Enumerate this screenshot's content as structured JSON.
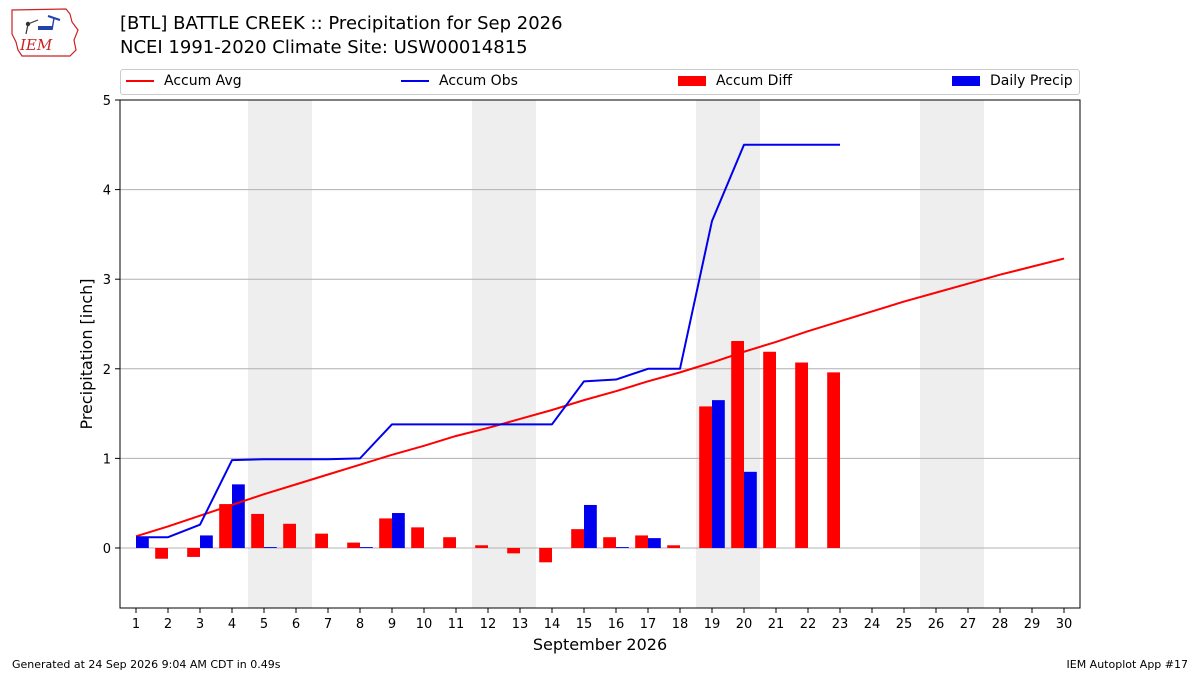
{
  "header": {
    "logo_text": "IEM",
    "title_line1": "[BTL] BATTLE CREEK :: Precipitation for Sep 2026",
    "title_line2": "NCEI 1991-2020 Climate Site: USW00014815"
  },
  "footer": {
    "left": "Generated at 24 Sep 2026 9:04 AM CDT in 0.49s",
    "right": "IEM Autoplot App #17"
  },
  "colors": {
    "avg": "#ff0000",
    "obs": "#0000ee",
    "diff": "#ff0000",
    "daily": "#0000ee",
    "weekend_shade": "#eeeeee",
    "grid": "#b0b0b0"
  },
  "chart_data": {
    "type": "bar",
    "xlabel": "September 2026",
    "ylabel": "Precipitation [inch]",
    "ylim": [
      -0.67,
      5
    ],
    "yticks": [
      0,
      1,
      2,
      3,
      4,
      5
    ],
    "xlim": [
      0.5,
      30.5
    ],
    "x": [
      1,
      2,
      3,
      4,
      5,
      6,
      7,
      8,
      9,
      10,
      11,
      12,
      13,
      14,
      15,
      16,
      17,
      18,
      19,
      20,
      21,
      22,
      23,
      24,
      25,
      26,
      27,
      28,
      29,
      30
    ],
    "grid": "horizontal",
    "legend_placement": "top",
    "weekend_shading": [
      [
        4.5,
        6.5
      ],
      [
        11.5,
        13.5
      ],
      [
        18.5,
        20.5
      ],
      [
        25.5,
        27.5
      ]
    ],
    "series": [
      {
        "name": "Accum Avg",
        "kind": "line",
        "values": [
          0.13,
          0.24,
          0.36,
          0.48,
          0.6,
          0.71,
          0.82,
          0.93,
          1.04,
          1.14,
          1.25,
          1.34,
          1.44,
          1.54,
          1.65,
          1.75,
          1.86,
          1.96,
          2.07,
          2.19,
          2.3,
          2.42,
          2.53,
          2.64,
          2.75,
          2.85,
          2.95,
          3.05,
          3.14,
          3.23
        ]
      },
      {
        "name": "Accum Obs",
        "kind": "line",
        "values": [
          0.12,
          0.12,
          0.26,
          0.98,
          0.99,
          0.99,
          0.99,
          1.0,
          1.38,
          1.38,
          1.38,
          1.38,
          1.38,
          1.38,
          1.86,
          1.88,
          2.0,
          2.0,
          3.65,
          4.5,
          4.5,
          4.5,
          4.5,
          null,
          null,
          null,
          null,
          null,
          null,
          null
        ]
      },
      {
        "name": "Accum Diff",
        "kind": "bar",
        "values": [
          0.0,
          -0.12,
          -0.1,
          0.49,
          0.38,
          0.27,
          0.16,
          0.06,
          0.33,
          0.23,
          0.12,
          0.03,
          -0.06,
          -0.16,
          0.21,
          0.12,
          0.14,
          0.03,
          1.58,
          2.31,
          2.19,
          2.07,
          1.96,
          null,
          null,
          null,
          null,
          null,
          null,
          null
        ]
      },
      {
        "name": "Daily Precip",
        "kind": "bar",
        "values": [
          0.12,
          0.0,
          0.14,
          0.71,
          0.01,
          0.0,
          0.0,
          0.01,
          0.39,
          0.0,
          0.0,
          0.0,
          0.0,
          0.0,
          0.48,
          0.01,
          0.11,
          0.0,
          1.65,
          0.85,
          0.0,
          0.0,
          0.0,
          null,
          null,
          null,
          null,
          null,
          null,
          null
        ]
      }
    ]
  }
}
